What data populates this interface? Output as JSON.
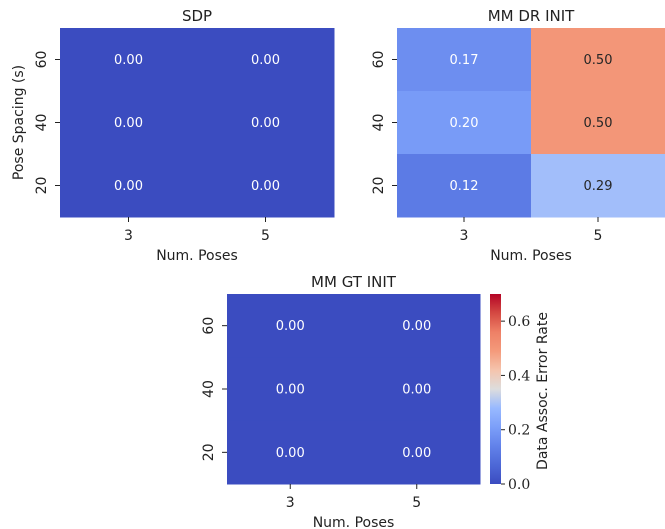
{
  "chart_data": [
    {
      "type": "heatmap",
      "title": "SDP",
      "xlabel": "Num. Poses",
      "ylabel": "Pose Spacing (s)",
      "x_categories": [
        "3",
        "5"
      ],
      "y_categories": [
        "60",
        "40",
        "20"
      ],
      "values": [
        [
          0.0,
          0.0
        ],
        [
          0.0,
          0.0
        ],
        [
          0.0,
          0.0
        ]
      ],
      "value_labels": [
        [
          "0.00",
          "0.00"
        ],
        [
          "0.00",
          "0.00"
        ],
        [
          "0.00",
          "0.00"
        ]
      ]
    },
    {
      "type": "heatmap",
      "title": "MM DR INIT",
      "xlabel": "Num. Poses",
      "ylabel": "",
      "x_categories": [
        "3",
        "5"
      ],
      "y_categories": [
        "60",
        "40",
        "20"
      ],
      "values": [
        [
          0.17,
          0.5
        ],
        [
          0.2,
          0.5
        ],
        [
          0.12,
          0.29
        ]
      ],
      "value_labels": [
        [
          "0.17",
          "0.50"
        ],
        [
          "0.20",
          "0.50"
        ],
        [
          "0.12",
          "0.29"
        ]
      ]
    },
    {
      "type": "heatmap",
      "title": "MM GT INIT",
      "xlabel": "Num. Poses",
      "ylabel": "",
      "x_categories": [
        "3",
        "5"
      ],
      "y_categories": [
        "60",
        "40",
        "20"
      ],
      "values": [
        [
          0.0,
          0.0
        ],
        [
          0.0,
          0.0
        ],
        [
          0.0,
          0.0
        ]
      ],
      "value_labels": [
        [
          "0.00",
          "0.00"
        ],
        [
          "0.00",
          "0.00"
        ],
        [
          "0.00",
          "0.00"
        ]
      ]
    }
  ],
  "colorbar": {
    "label": "Data Assoc. Error Rate",
    "colormap": "coolwarm",
    "range": [
      0,
      0.7
    ],
    "ticks": [
      0.0,
      0.2,
      0.4,
      0.6
    ],
    "tick_labels": [
      "0.0",
      "0.2",
      "0.4",
      "0.6"
    ]
  }
}
